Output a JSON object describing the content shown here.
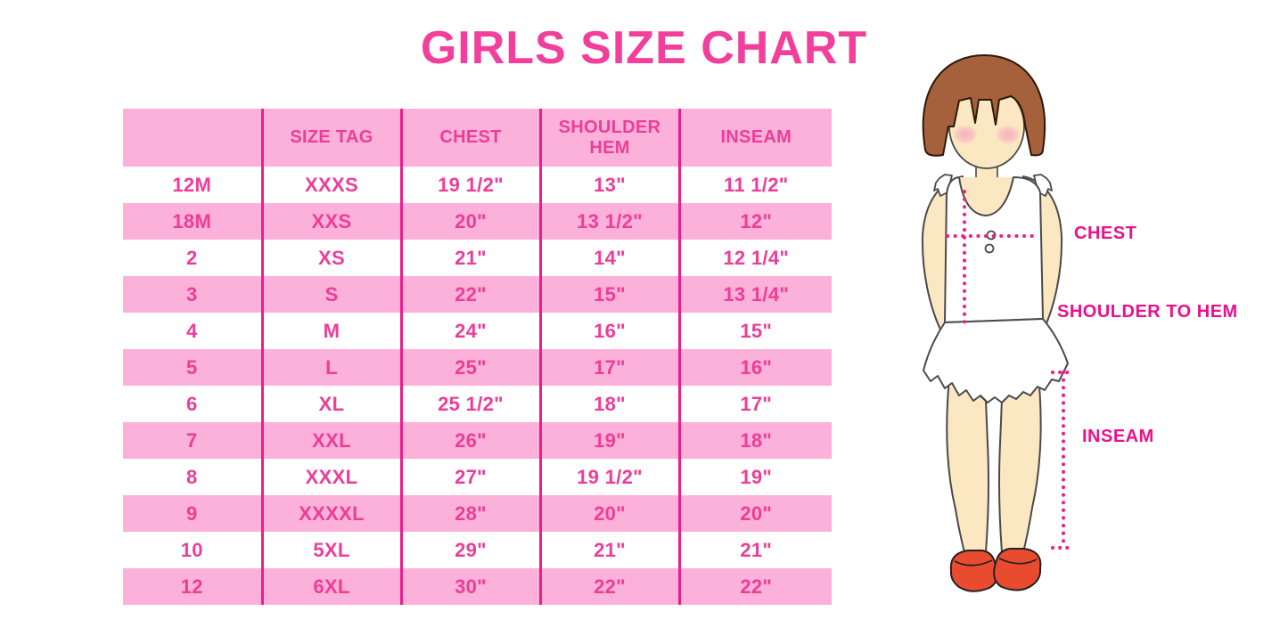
{
  "title": "GIRLS SIZE CHART",
  "chart_data": {
    "type": "table",
    "title": "GIRLS SIZE CHART",
    "columns": [
      "",
      "SIZE TAG",
      "CHEST",
      "SHOULDER HEM",
      "INSEAM"
    ],
    "rows": [
      [
        "12M",
        "XXXS",
        "19 1/2\"",
        "13\"",
        "11 1/2\""
      ],
      [
        "18M",
        "XXS",
        "20\"",
        "13 1/2\"",
        "12\""
      ],
      [
        "2",
        "XS",
        "21\"",
        "14\"",
        "12 1/4\""
      ],
      [
        "3",
        "S",
        "22\"",
        "15\"",
        "13 1/4\""
      ],
      [
        "4",
        "M",
        "24\"",
        "16\"",
        "15\""
      ],
      [
        "5",
        "L",
        "25\"",
        "17\"",
        "16\""
      ],
      [
        "6",
        "XL",
        "25 1/2\"",
        "18\"",
        "17\""
      ],
      [
        "7",
        "XXL",
        "26\"",
        "19\"",
        "18\""
      ],
      [
        "8",
        "XXXL",
        "27\"",
        "19 1/2\"",
        "19\""
      ],
      [
        "9",
        "XXXXL",
        "28\"",
        "20\"",
        "20\""
      ],
      [
        "10",
        "5XL",
        "29\"",
        "21\"",
        "21\""
      ],
      [
        "12",
        "6XL",
        "30\"",
        "22\"",
        "22\""
      ]
    ],
    "row_striping": "alternating pink/white starting with pink header",
    "legend_position": "none",
    "grid": "vertical column separators only"
  },
  "diagram": {
    "description": "illustrated girl with measurement guide lines",
    "labels": {
      "chest": "CHEST",
      "shoulder_to_hem": "SHOULDER TO HEM",
      "inseam": "INSEAM"
    }
  },
  "colors": {
    "title_pink": "#F23F9B",
    "table_text_pink": "#EE3D98",
    "stripe_pink": "#FBB1D9",
    "grid_line_pink": "#EA1E8D",
    "annotation_magenta": "#EC108C",
    "dotted_line_magenta": "#EC1E8C",
    "hair_brown": "#A4613C",
    "skin": "#FBE7C2",
    "cheek_pink": "#F6AFC0",
    "shoe_red": "#E94B2F",
    "outline_dark": "#4A4A4A",
    "background": "#FFFFFF"
  }
}
